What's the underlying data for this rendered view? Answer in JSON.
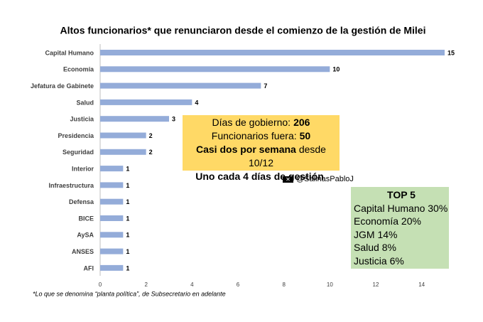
{
  "chart_data": {
    "type": "hbar",
    "title": "Altos funcionarios* que renunciaron desde el comienzo de la gestión de Milei",
    "categories": [
      "Capital Humano",
      "Economía",
      "Jefatura de Gabinete",
      "Salud",
      "Justicia",
      "Presidencia",
      "Seguridad",
      "Interior",
      "Infraestructura",
      "Defensa",
      "BICE",
      "AySA",
      "ANSES",
      "AFI"
    ],
    "values": [
      15,
      10,
      7,
      4,
      3,
      2,
      2,
      1,
      1,
      1,
      1,
      1,
      1,
      1
    ],
    "color": "#94acd9",
    "xlim": [
      0,
      15
    ],
    "xticks": [
      0,
      2,
      4,
      6,
      8,
      10,
      12,
      14
    ],
    "grid": false,
    "footnote": "*Lo que se denomina “planta política”, de Subsecretario en adelante",
    "info_box": {
      "lines": [
        [
          "Días de gobierno:",
          "206"
        ],
        [
          "Funcionarios fuera:",
          "50"
        ],
        [
          "Casi dos por semana",
          "desde 10/12"
        ],
        [
          "Uno cada 4 días de gestión"
        ]
      ]
    },
    "handle": "@SalinasPabloJ",
    "top_box": {
      "title": "TOP 5",
      "lines": [
        "Capital Humano 30%",
        "Economía 20%",
        "JGM 14%",
        "Salud 8%",
        "Justicia 6%"
      ]
    }
  }
}
